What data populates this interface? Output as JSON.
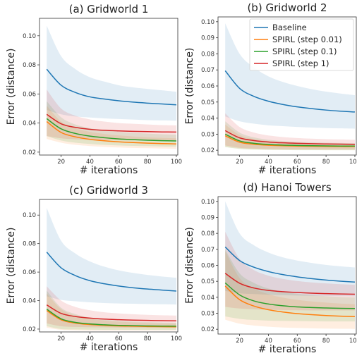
{
  "chart_data": [
    {
      "type": "line",
      "title": "(a) Gridworld 1",
      "xlabel": "# iterations",
      "ylabel": "Error (distance)",
      "xlim": [
        5,
        101
      ],
      "ylim": [
        0.018,
        0.112
      ],
      "xticks": [
        20,
        40,
        60,
        80,
        100
      ],
      "yticks": [
        0.02,
        0.04,
        0.06,
        0.08,
        0.1
      ],
      "ytick_labels": [
        "0.02",
        "0.04",
        "0.06",
        "0.08",
        "0.10"
      ],
      "x": [
        10,
        20,
        30,
        40,
        50,
        60,
        70,
        80,
        90,
        100
      ],
      "series": [
        {
          "name": "Baseline",
          "color": "#1f77b4",
          "values": [
            0.077,
            0.066,
            0.061,
            0.058,
            0.0565,
            0.0553,
            0.0544,
            0.0537,
            0.0531,
            0.0525
          ],
          "upper": [
            0.107,
            0.086,
            0.077,
            0.0715,
            0.0685,
            0.066,
            0.0645,
            0.0635,
            0.0625,
            0.0615
          ],
          "lower": [
            0.049,
            0.046,
            0.0445,
            0.0438,
            0.0432,
            0.0428,
            0.0424,
            0.042,
            0.0418,
            0.0416
          ]
        },
        {
          "name": "SPIRL (step 0.01)",
          "color": "#ff7f0e",
          "values": [
            0.041,
            0.0335,
            0.0305,
            0.0288,
            0.0278,
            0.0271,
            0.0266,
            0.0262,
            0.0259,
            0.0256
          ],
          "upper": [
            0.052,
            0.041,
            0.0365,
            0.034,
            0.0325,
            0.0315,
            0.0308,
            0.0302,
            0.0298,
            0.0295
          ],
          "lower": [
            0.029,
            0.0265,
            0.025,
            0.0242,
            0.0236,
            0.0232,
            0.0229,
            0.0227,
            0.0225,
            0.0223
          ]
        },
        {
          "name": "SPIRL (step 0.1)",
          "color": "#2ca02c",
          "values": [
            0.043,
            0.036,
            0.0328,
            0.031,
            0.0299,
            0.0291,
            0.0286,
            0.0282,
            0.0279,
            0.0277
          ],
          "upper": [
            0.055,
            0.044,
            0.039,
            0.0365,
            0.035,
            0.034,
            0.0333,
            0.0327,
            0.0323,
            0.032
          ],
          "lower": [
            0.031,
            0.028,
            0.0265,
            0.0256,
            0.025,
            0.0246,
            0.0243,
            0.0241,
            0.0239,
            0.0238
          ]
        },
        {
          "name": "SPIRL (step 1)",
          "color": "#d62728",
          "values": [
            0.046,
            0.0395,
            0.037,
            0.0357,
            0.035,
            0.0346,
            0.0343,
            0.0341,
            0.0339,
            0.0338
          ],
          "upper": [
            0.063,
            0.05,
            0.045,
            0.0425,
            0.041,
            0.04,
            0.0395,
            0.039,
            0.0386,
            0.0384
          ],
          "lower": [
            0.031,
            0.0295,
            0.0288,
            0.0285,
            0.0283,
            0.0282,
            0.0281,
            0.028,
            0.0279,
            0.0279
          ]
        }
      ]
    },
    {
      "type": "line",
      "title": "(b) Gridworld 2",
      "xlabel": "# iterations",
      "ylabel": "Error (distance)",
      "xlim": [
        5,
        101
      ],
      "ylim": [
        0.017,
        0.103
      ],
      "xticks": [
        20,
        40,
        60,
        80,
        100
      ],
      "yticks": [
        0.02,
        0.03,
        0.04,
        0.05,
        0.06,
        0.07,
        0.08,
        0.09,
        0.1
      ],
      "ytick_labels": [
        "0.02",
        "0.03",
        "0.04",
        "0.05",
        "0.06",
        "0.07",
        "0.08",
        "0.09",
        "0.10"
      ],
      "legend": "upper right",
      "x": [
        10,
        20,
        30,
        40,
        50,
        60,
        70,
        80,
        90,
        100
      ],
      "series": [
        {
          "name": "Baseline",
          "color": "#1f77b4",
          "values": [
            0.0695,
            0.0585,
            0.0535,
            0.0505,
            0.0485,
            0.047,
            0.0459,
            0.045,
            0.0443,
            0.0438
          ],
          "upper": [
            0.099,
            0.08,
            0.0715,
            0.066,
            0.0625,
            0.06,
            0.058,
            0.0565,
            0.0553,
            0.0543
          ],
          "lower": [
            0.041,
            0.038,
            0.0365,
            0.0355,
            0.035,
            0.0345,
            0.0341,
            0.0338,
            0.0336,
            0.0334
          ]
        },
        {
          "name": "SPIRL (step 0.01)",
          "color": "#ff7f0e",
          "values": [
            0.029,
            0.025,
            0.0237,
            0.0231,
            0.0228,
            0.0226,
            0.0225,
            0.0224,
            0.0223,
            0.0223
          ],
          "upper": [
            0.036,
            0.0295,
            0.027,
            0.0258,
            0.0251,
            0.0247,
            0.0244,
            0.0242,
            0.0241,
            0.024
          ],
          "lower": [
            0.022,
            0.021,
            0.0205,
            0.0203,
            0.0202,
            0.0201,
            0.0201,
            0.02,
            0.02,
            0.02
          ]
        },
        {
          "name": "SPIRL (step 0.1)",
          "color": "#2ca02c",
          "values": [
            0.03,
            0.0258,
            0.0243,
            0.0236,
            0.0232,
            0.023,
            0.0228,
            0.0227,
            0.0226,
            0.0226
          ],
          "upper": [
            0.038,
            0.031,
            0.028,
            0.0265,
            0.0257,
            0.0252,
            0.0249,
            0.0247,
            0.0245,
            0.0244
          ],
          "lower": [
            0.022,
            0.0208,
            0.0204,
            0.0202,
            0.0201,
            0.02,
            0.02,
            0.02,
            0.02,
            0.02
          ]
        },
        {
          "name": "SPIRL (step 1)",
          "color": "#d62728",
          "values": [
            0.0322,
            0.0277,
            0.026,
            0.0251,
            0.0246,
            0.0243,
            0.0241,
            0.0239,
            0.0238,
            0.0237
          ],
          "upper": [
            0.043,
            0.0345,
            0.031,
            0.0292,
            0.0282,
            0.0276,
            0.0272,
            0.0269,
            0.0267,
            0.0265
          ],
          "lower": [
            0.023,
            0.0215,
            0.021,
            0.0208,
            0.0207,
            0.0206,
            0.0205,
            0.0205,
            0.0205,
            0.0205
          ]
        }
      ]
    },
    {
      "type": "line",
      "title": "(c) Gridworld 3",
      "xlabel": "# iterations",
      "ylabel": "Error (distance)",
      "xlim": [
        5,
        101
      ],
      "ylim": [
        0.018,
        0.111
      ],
      "xticks": [
        20,
        40,
        60,
        80,
        100
      ],
      "yticks": [
        0.02,
        0.04,
        0.06,
        0.08,
        0.1
      ],
      "ytick_labels": [
        "0.02",
        "0.04",
        "0.06",
        "0.08",
        "0.10"
      ],
      "x": [
        10,
        20,
        30,
        40,
        50,
        60,
        70,
        80,
        90,
        100
      ],
      "series": [
        {
          "name": "Baseline",
          "color": "#1f77b4",
          "values": [
            0.074,
            0.063,
            0.0575,
            0.054,
            0.0518,
            0.0502,
            0.049,
            0.0481,
            0.0474,
            0.0467
          ],
          "upper": [
            0.105,
            0.082,
            0.073,
            0.0675,
            0.0638,
            0.0612,
            0.0594,
            0.058,
            0.0569,
            0.056
          ],
          "lower": [
            0.043,
            0.0405,
            0.0395,
            0.0388,
            0.0383,
            0.038,
            0.0378,
            0.0376,
            0.0374,
            0.0372
          ]
        },
        {
          "name": "SPIRL (step 0.01)",
          "color": "#ff7f0e",
          "values": [
            0.033,
            0.0265,
            0.0242,
            0.0232,
            0.0226,
            0.0222,
            0.022,
            0.0218,
            0.0217,
            0.0216
          ],
          "upper": [
            0.045,
            0.034,
            0.0295,
            0.0272,
            0.026,
            0.0252,
            0.0247,
            0.0243,
            0.024,
            0.0238
          ],
          "lower": [
            0.021,
            0.0195,
            0.0192,
            0.019,
            0.019,
            0.019,
            0.019,
            0.019,
            0.019,
            0.019
          ]
        },
        {
          "name": "SPIRL (step 0.1)",
          "color": "#2ca02c",
          "values": [
            0.034,
            0.0272,
            0.0247,
            0.0236,
            0.023,
            0.0226,
            0.0224,
            0.0222,
            0.0221,
            0.022
          ],
          "upper": [
            0.047,
            0.035,
            0.0305,
            0.028,
            0.0267,
            0.0259,
            0.0253,
            0.0249,
            0.0246,
            0.0244
          ],
          "lower": [
            0.022,
            0.02,
            0.0197,
            0.0196,
            0.0195,
            0.0195,
            0.0195,
            0.0195,
            0.0195,
            0.0195
          ]
        },
        {
          "name": "SPIRL (step 1)",
          "color": "#d62728",
          "values": [
            0.037,
            0.031,
            0.0288,
            0.0277,
            0.027,
            0.0266,
            0.0263,
            0.0261,
            0.0259,
            0.0258
          ],
          "upper": [
            0.05,
            0.04,
            0.0355,
            0.0332,
            0.0318,
            0.031,
            0.0304,
            0.03,
            0.0297,
            0.0295
          ],
          "lower": [
            0.024,
            0.022,
            0.0215,
            0.0213,
            0.0212,
            0.0211,
            0.021,
            0.021,
            0.021,
            0.021
          ]
        }
      ]
    },
    {
      "type": "line",
      "title": "(d) Hanoi Towers",
      "xlabel": "# iterations",
      "ylabel": "Error (distance)",
      "xlim": [
        5,
        101
      ],
      "ylim": [
        0.017,
        0.103
      ],
      "xticks": [
        20,
        40,
        60,
        80,
        100
      ],
      "yticks": [
        0.02,
        0.03,
        0.04,
        0.05,
        0.06,
        0.07,
        0.08,
        0.09,
        0.1
      ],
      "ytick_labels": [
        "0.02",
        "0.03",
        "0.04",
        "0.05",
        "0.06",
        "0.07",
        "0.08",
        "0.09",
        "0.10"
      ],
      "x": [
        10,
        20,
        30,
        40,
        50,
        60,
        70,
        80,
        90,
        100
      ],
      "series": [
        {
          "name": "Baseline",
          "color": "#1f77b4",
          "values": [
            0.0715,
            0.063,
            0.0588,
            0.0561,
            0.0542,
            0.0528,
            0.0517,
            0.0508,
            0.0501,
            0.0495
          ],
          "upper": [
            0.1,
            0.08,
            0.0725,
            0.068,
            0.065,
            0.063,
            0.0615,
            0.0603,
            0.0594,
            0.0587
          ],
          "lower": [
            0.044,
            0.0425,
            0.042,
            0.0416,
            0.0413,
            0.0411,
            0.0409,
            0.0408,
            0.0407,
            0.0406
          ]
        },
        {
          "name": "SPIRL (step 0.01)",
          "color": "#ff7f0e",
          "values": [
            0.047,
            0.0385,
            0.0345,
            0.0322,
            0.0308,
            0.0298,
            0.0291,
            0.0286,
            0.0282,
            0.0279
          ],
          "upper": [
            0.069,
            0.052,
            0.0455,
            0.042,
            0.0398,
            0.0384,
            0.0374,
            0.0367,
            0.0361,
            0.0357
          ],
          "lower": [
            0.026,
            0.0235,
            0.0223,
            0.0216,
            0.0211,
            0.0208,
            0.0206,
            0.0204,
            0.0203,
            0.0202
          ]
        },
        {
          "name": "SPIRL (step 0.1)",
          "color": "#2ca02c",
          "values": [
            0.049,
            0.0415,
            0.0377,
            0.0358,
            0.0347,
            0.034,
            0.0336,
            0.0333,
            0.0331,
            0.033
          ],
          "upper": [
            0.07,
            0.055,
            0.049,
            0.0455,
            0.0435,
            0.0422,
            0.0413,
            0.0407,
            0.0402,
            0.0399
          ],
          "lower": [
            0.028,
            0.0265,
            0.0258,
            0.0254,
            0.0252,
            0.0251,
            0.025,
            0.0249,
            0.0249,
            0.0249
          ]
        },
        {
          "name": "SPIRL (step 1)",
          "color": "#d62728",
          "values": [
            0.055,
            0.0488,
            0.0458,
            0.0443,
            0.0435,
            0.043,
            0.0426,
            0.0423,
            0.0421,
            0.0419
          ],
          "upper": [
            0.081,
            0.064,
            0.057,
            0.0535,
            0.0515,
            0.0502,
            0.0493,
            0.0487,
            0.0482,
            0.0478
          ],
          "lower": [
            0.034,
            0.033,
            0.0325,
            0.0322,
            0.032,
            0.0319,
            0.0318,
            0.0318,
            0.0318,
            0.0318
          ]
        }
      ]
    }
  ]
}
